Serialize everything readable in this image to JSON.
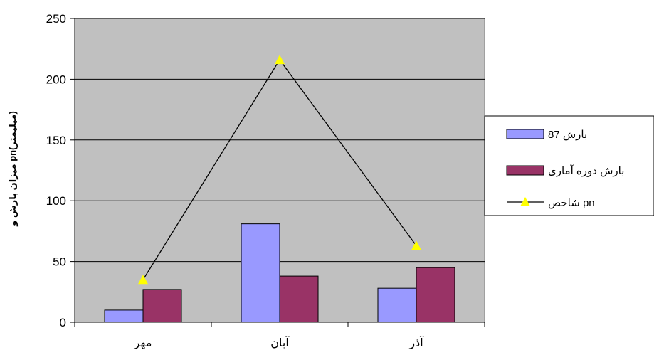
{
  "chart_data": {
    "type": "bar",
    "categories": [
      "مهر",
      "آبان",
      "آذر"
    ],
    "series": [
      {
        "name": "بارش  87",
        "kind": "bar",
        "color": "#9999FF",
        "values": [
          10,
          81,
          28
        ]
      },
      {
        "name": "بارش دوره آماری",
        "kind": "bar",
        "color": "#993366",
        "values": [
          27,
          38,
          45
        ]
      },
      {
        "name": "شاخص pn",
        "kind": "line",
        "color": "#000000",
        "marker_color": "#FFFF00",
        "values": [
          35,
          216,
          63
        ]
      }
    ],
    "title": "",
    "xlabel": "",
    "ylabel": "میزان بارش و pn(میلیمتر)",
    "ylim": [
      0,
      250
    ],
    "yticks": [
      0,
      50,
      100,
      150,
      200,
      250
    ],
    "grid": true,
    "plot_background": "#C0C0C0",
    "legend_position": "right"
  }
}
